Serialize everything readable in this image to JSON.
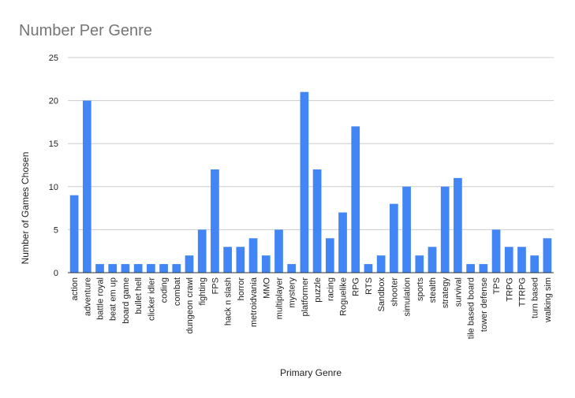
{
  "chart_data": {
    "type": "bar",
    "title": "Number Per Genre",
    "xlabel": "Primary Genre",
    "ylabel": "Number of Games Chosen",
    "ylim": [
      0,
      25
    ],
    "yticks": [
      0,
      5,
      10,
      15,
      20,
      25
    ],
    "grid": true,
    "legend": "none",
    "bar_color": "#4285f4",
    "categories": [
      "action",
      "adventure",
      "battle royal",
      "beat em up",
      "board game",
      "bullet hell",
      "clicker idler",
      "coding",
      "combat",
      "dungeon crawl",
      "fighting",
      "FPS",
      "hack n slash",
      "horror",
      "metroidvania",
      "MMO",
      "multiplayer",
      "mystery",
      "platformer",
      "puzzle",
      "racing",
      "Roguelike",
      "RPG",
      "RTS",
      "Sandbox",
      "shooter",
      "simulation",
      "sports",
      "stealth",
      "strategy",
      "survival",
      "tile based board",
      "tower defense",
      "TPS",
      "TRPG",
      "TTRPG",
      "turn based",
      "walking sim"
    ],
    "values": [
      9,
      20,
      1,
      1,
      1,
      1,
      1,
      1,
      1,
      2,
      5,
      12,
      3,
      3,
      4,
      2,
      5,
      1,
      21,
      12,
      4,
      7,
      17,
      1,
      2,
      8,
      10,
      2,
      3,
      10,
      11,
      1,
      1,
      5,
      3,
      3,
      2,
      4
    ]
  }
}
